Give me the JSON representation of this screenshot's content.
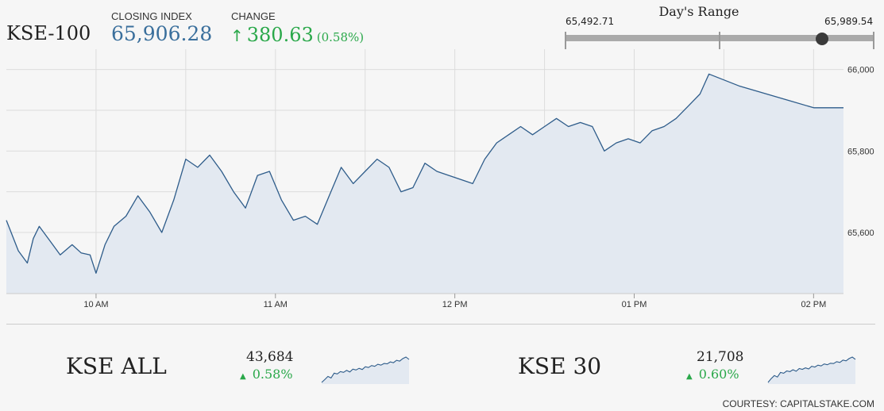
{
  "header": {
    "index_name": "KSE-100",
    "closing_label": "CLOSING INDEX",
    "closing_value": "65,906.28",
    "change_label": "CHANGE",
    "change_arrow": "↑",
    "change_value": "380.63",
    "change_percent": "(0.58%)"
  },
  "days_range": {
    "title": "Day's Range",
    "low": "65,492.71",
    "high": "65,989.54",
    "low_value": 65492.71,
    "high_value": 65989.54,
    "current_value": 65906.28
  },
  "colors": {
    "line": "#2e5c8a",
    "fill": "#e3e9f1",
    "up": "#2aa84a",
    "closing": "#3a6f9c"
  },
  "chart_data": {
    "type": "area",
    "title": "",
    "xlabel": "",
    "ylabel": "",
    "x_ticks": [
      "10 AM",
      "11 AM",
      "12 PM",
      "01 PM",
      "02 PM"
    ],
    "y_ticks": [
      65600,
      65800,
      66000
    ],
    "y_tick_labels": [
      "65,600",
      "65,800",
      "66,000"
    ],
    "ylim": [
      65450,
      66050
    ],
    "xlim": [
      "09:30",
      "14:10"
    ],
    "grid": true,
    "series": [
      {
        "values": [
          [
            "09:30",
            65630
          ],
          [
            "09:34",
            65555
          ],
          [
            "09:37",
            65525
          ],
          [
            "09:39",
            65585
          ],
          [
            "09:41",
            65615
          ],
          [
            "09:45",
            65575
          ],
          [
            "09:48",
            65545
          ],
          [
            "09:52",
            65570
          ],
          [
            "09:55",
            65550
          ],
          [
            "09:58",
            65545
          ],
          [
            "10:00",
            65500
          ],
          [
            "10:03",
            65570
          ],
          [
            "10:06",
            65615
          ],
          [
            "10:10",
            65640
          ],
          [
            "10:14",
            65690
          ],
          [
            "10:18",
            65650
          ],
          [
            "10:22",
            65600
          ],
          [
            "10:26",
            65680
          ],
          [
            "10:30",
            65780
          ],
          [
            "10:34",
            65760
          ],
          [
            "10:38",
            65790
          ],
          [
            "10:42",
            65750
          ],
          [
            "10:46",
            65700
          ],
          [
            "10:50",
            65660
          ],
          [
            "10:54",
            65740
          ],
          [
            "10:58",
            65750
          ],
          [
            "11:02",
            65680
          ],
          [
            "11:06",
            65630
          ],
          [
            "11:10",
            65640
          ],
          [
            "11:14",
            65620
          ],
          [
            "11:18",
            65690
          ],
          [
            "11:22",
            65760
          ],
          [
            "11:26",
            65720
          ],
          [
            "11:30",
            65750
          ],
          [
            "11:34",
            65780
          ],
          [
            "11:38",
            65760
          ],
          [
            "11:42",
            65700
          ],
          [
            "11:46",
            65710
          ],
          [
            "11:50",
            65770
          ],
          [
            "11:54",
            65750
          ],
          [
            "11:58",
            65740
          ],
          [
            "12:02",
            65730
          ],
          [
            "12:06",
            65720
          ],
          [
            "12:10",
            65780
          ],
          [
            "12:14",
            65820
          ],
          [
            "12:18",
            65840
          ],
          [
            "12:22",
            65860
          ],
          [
            "12:26",
            65840
          ],
          [
            "12:30",
            65860
          ],
          [
            "12:34",
            65880
          ],
          [
            "12:38",
            65860
          ],
          [
            "12:42",
            65870
          ],
          [
            "12:46",
            65860
          ],
          [
            "12:50",
            65800
          ],
          [
            "12:54",
            65820
          ],
          [
            "12:58",
            65830
          ],
          [
            "13:02",
            65820
          ],
          [
            "13:06",
            65850
          ],
          [
            "13:10",
            65860
          ],
          [
            "13:14",
            65880
          ],
          [
            "13:18",
            65910
          ],
          [
            "13:22",
            65940
          ],
          [
            "13:25",
            65989
          ],
          [
            "13:35",
            65960
          ],
          [
            "14:00",
            65906.28
          ],
          [
            "14:10",
            65906.28
          ]
        ]
      }
    ]
  },
  "mini": [
    {
      "name": "KSE ALL",
      "value": "43,684",
      "arrow": "▲",
      "change": "0.58%",
      "spark": [
        3,
        10,
        18,
        14,
        26,
        24,
        30,
        28,
        33,
        29,
        36,
        34,
        38,
        35,
        42,
        40,
        45,
        43,
        48,
        46,
        50,
        49,
        54,
        52,
        58,
        56,
        62,
        66,
        60
      ]
    },
    {
      "name": "KSE 30",
      "value": "21,708",
      "arrow": "▲",
      "change": "0.60%",
      "spark": [
        2,
        12,
        20,
        16,
        28,
        26,
        32,
        30,
        35,
        31,
        38,
        36,
        40,
        37,
        44,
        42,
        47,
        45,
        50,
        48,
        52,
        51,
        56,
        54,
        60,
        58,
        64,
        68,
        62
      ]
    }
  ],
  "footer": {
    "courtesy": "COURTESY: CAPITALSTAKE.COM"
  }
}
